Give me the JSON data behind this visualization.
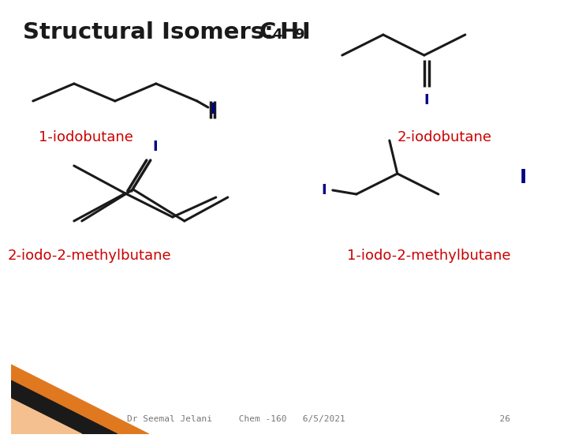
{
  "bg_color": "#ffffff",
  "line_color": "#1a1a1a",
  "iodine_color": "#00008B",
  "label_color": "#cc0000",
  "footer_color": "#777777",
  "footer_text": "Dr Seemal Jelani     Chem -160   6/5/2021                             26",
  "label1": "1-iodobutane",
  "label2": "2-iodobutane",
  "label3": "2-iodo-2-methylbutane",
  "label4": "1-iodo-2-methylbutane",
  "title_prefix": "Structural Isomers:  ",
  "title_C": "C",
  "title_4": "4",
  "title_H": "H",
  "title_9": "9",
  "title_I": "I"
}
